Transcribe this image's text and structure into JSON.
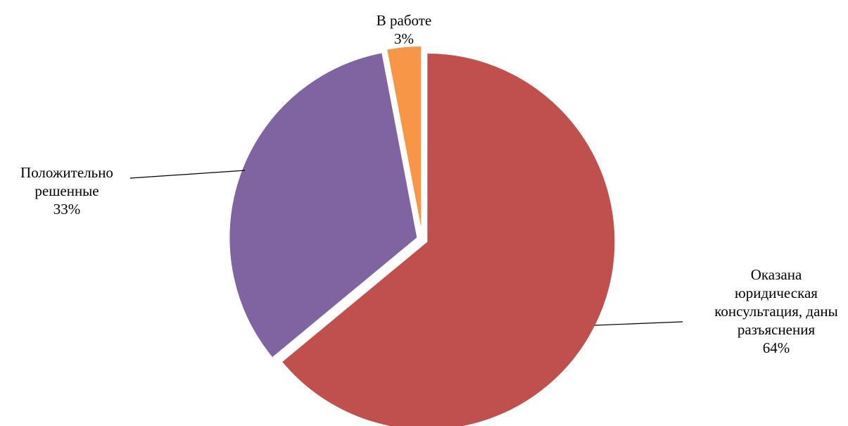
{
  "chart_data": {
    "type": "pie",
    "title": "",
    "slices": [
      {
        "label_lines": [
          "Оказана",
          "юридическая",
          "консультация, даны",
          "разъяснения"
        ],
        "value": 64,
        "percent_label": "64%",
        "color": "#C0504D"
      },
      {
        "label_lines": [
          "Положительно",
          "решенные"
        ],
        "value": 33,
        "percent_label": "33%",
        "color": "#8064A2"
      },
      {
        "label_lines": [
          "В работе"
        ],
        "value": 3,
        "percent_label": "3%",
        "color": "#F79646"
      }
    ],
    "start_angle": "12 o'clock",
    "direction": "clockwise",
    "exploded": true,
    "legend": "none"
  }
}
